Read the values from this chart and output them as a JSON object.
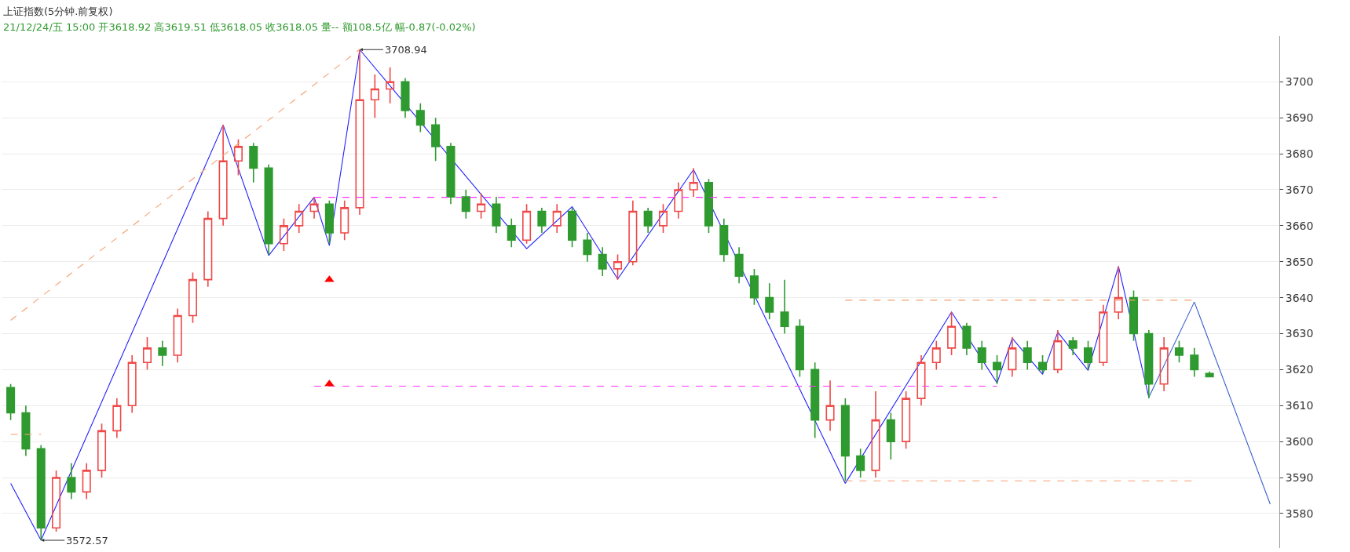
{
  "chart_data": {
    "type": "candlestick",
    "title": "上证指数(5分钟.前复权)",
    "subtitle": "21/12/24/五 15:00 开3618.92 高3619.51 低3618.05 收3618.05 量-- 额108.5亿 幅-0.87(-0.02%)",
    "categories": [
      null,
      null,
      null,
      null,
      null,
      null,
      null,
      null,
      null,
      null,
      null,
      null,
      null,
      null,
      null,
      null,
      null,
      null,
      null,
      null,
      null,
      null,
      null,
      null,
      null,
      null,
      null,
      null,
      null,
      null,
      null,
      null,
      null,
      null,
      null,
      null,
      null,
      null,
      null,
      null,
      null,
      null,
      null,
      null,
      null,
      null,
      null,
      null,
      null,
      null,
      null,
      null,
      null,
      null,
      null,
      null,
      null,
      null,
      null,
      null,
      null,
      null,
      null,
      null,
      null,
      null,
      null,
      null,
      null,
      null,
      null,
      null,
      null,
      null,
      null,
      null,
      null,
      null,
      null,
      null,
      null,
      null,
      null,
      null
    ],
    "series": [
      {
        "colors": [
          "#2f9a2f",
          "#2f9a2f",
          "#2f9a2f",
          "#f04848",
          "#2f9a2f",
          "#f04848",
          "#f04848",
          "#f04848",
          "#f04848",
          "#f04848",
          "#2f9a2f",
          "#f04848",
          "#f04848",
          "#f04848",
          "#f04848",
          "#f04848",
          "#2f9a2f",
          "#2f9a2f",
          "#f04848",
          "#f04848",
          "#f04848",
          "#2f9a2f",
          "#f04848",
          "#f04848",
          "#f04848",
          "#f04848",
          "#2f9a2f",
          "#2f9a2f",
          "#2f9a2f",
          "#2f9a2f",
          "#2f9a2f",
          "#f04848",
          "#2f9a2f",
          "#2f9a2f",
          "#f04848",
          "#2f9a2f",
          "#f04848",
          "#2f9a2f",
          "#2f9a2f",
          "#2f9a2f",
          "#f04848",
          "#f04848",
          "#2f9a2f",
          "#f04848",
          "#f04848",
          "#f04848",
          "#2f9a2f",
          "#2f9a2f",
          "#2f9a2f",
          "#2f9a2f",
          "#2f9a2f",
          "#2f9a2f",
          "#2f9a2f",
          "#2f9a2f",
          "#f04848",
          "#2f9a2f",
          "#2f9a2f",
          "#f04848",
          "#2f9a2f",
          "#f04848",
          "#f04848",
          "#f04848",
          "#f04848",
          "#2f9a2f",
          "#2f9a2f",
          "#2f9a2f",
          "#f04848",
          "#2f9a2f",
          "#2f9a2f",
          "#f04848",
          "#2f9a2f",
          "#2f9a2f",
          "#f04848",
          "#f04848",
          "#2f9a2f",
          "#2f9a2f",
          "#f04848",
          "#2f9a2f",
          "#2f9a2f",
          "#2f9a2f",
          null,
          null,
          null,
          null
        ],
        "ohlc": [
          [
            3615,
            3616,
            3606,
            3608
          ],
          [
            3608,
            3610,
            3596,
            3598
          ],
          [
            3598,
            3599,
            3572.57,
            3576
          ],
          [
            3576,
            3592,
            3575,
            3590
          ],
          [
            3590,
            3594,
            3584,
            3586
          ],
          [
            3586,
            3594,
            3584,
            3592
          ],
          [
            3592,
            3605,
            3590,
            3603
          ],
          [
            3603,
            3612,
            3601,
            3610
          ],
          [
            3610,
            3624,
            3608,
            3622
          ],
          [
            3622,
            3629,
            3620,
            3626
          ],
          [
            3626,
            3628,
            3621,
            3624
          ],
          [
            3624,
            3637,
            3622,
            3635
          ],
          [
            3635,
            3647,
            3633,
            3645
          ],
          [
            3645,
            3664,
            3643,
            3662
          ],
          [
            3662,
            3688,
            3660,
            3678
          ],
          [
            3678,
            3684,
            3674,
            3682
          ],
          [
            3682,
            3683,
            3672,
            3676
          ],
          [
            3676,
            3677,
            3652,
            3655
          ],
          [
            3655,
            3662,
            3653,
            3660
          ],
          [
            3660,
            3666,
            3658,
            3664
          ],
          [
            3664,
            3668,
            3662,
            3666
          ],
          [
            3666,
            3667,
            3655,
            3658
          ],
          [
            3658,
            3667,
            3656,
            3665
          ],
          [
            3665,
            3708.94,
            3663,
            3695
          ],
          [
            3695,
            3702,
            3690,
            3698
          ],
          [
            3698,
            3704,
            3694,
            3700
          ],
          [
            3700,
            3701,
            3690,
            3692
          ],
          [
            3692,
            3694,
            3686,
            3688
          ],
          [
            3688,
            3690,
            3678,
            3682
          ],
          [
            3682,
            3683,
            3666,
            3668
          ],
          [
            3668,
            3670,
            3662,
            3664
          ],
          [
            3664,
            3669,
            3662,
            3666
          ],
          [
            3666,
            3668,
            3658,
            3660
          ],
          [
            3660,
            3662,
            3654,
            3656
          ],
          [
            3656,
            3666,
            3655,
            3664
          ],
          [
            3664,
            3665,
            3658,
            3660
          ],
          [
            3660,
            3666,
            3658,
            3664
          ],
          [
            3664,
            3665,
            3654,
            3656
          ],
          [
            3656,
            3658,
            3650,
            3652
          ],
          [
            3652,
            3654,
            3646,
            3648
          ],
          [
            3648,
            3652,
            3645,
            3650
          ],
          [
            3650,
            3667,
            3649,
            3664
          ],
          [
            3664,
            3665,
            3658,
            3660
          ],
          [
            3660,
            3666,
            3658,
            3664
          ],
          [
            3664,
            3672,
            3662,
            3670
          ],
          [
            3670,
            3676,
            3668,
            3672
          ],
          [
            3672,
            3673,
            3658,
            3660
          ],
          [
            3660,
            3662,
            3650,
            3652
          ],
          [
            3652,
            3654,
            3644,
            3646
          ],
          [
            3646,
            3648,
            3638,
            3640
          ],
          [
            3640,
            3644,
            3634,
            3636
          ],
          [
            3636,
            3645,
            3630,
            3632
          ],
          [
            3632,
            3634,
            3618,
            3620
          ],
          [
            3620,
            3622,
            3601,
            3606
          ],
          [
            3606,
            3617,
            3603,
            3610
          ],
          [
            3610,
            3612,
            3589,
            3596
          ],
          [
            3596,
            3598,
            3590,
            3592
          ],
          [
            3592,
            3614,
            3590,
            3606
          ],
          [
            3606,
            3608,
            3595,
            3600
          ],
          [
            3600,
            3614,
            3598,
            3612
          ],
          [
            3612,
            3624,
            3610,
            3622
          ],
          [
            3622,
            3628,
            3620,
            3626
          ],
          [
            3626,
            3636,
            3624,
            3632
          ],
          [
            3632,
            3633,
            3624,
            3626
          ],
          [
            3626,
            3628,
            3620,
            3622
          ],
          [
            3622,
            3624,
            3616,
            3620
          ],
          [
            3620,
            3629,
            3618,
            3626
          ],
          [
            3626,
            3628,
            3620,
            3622
          ],
          [
            3622,
            3624,
            3619,
            3620
          ],
          [
            3620,
            3631,
            3619,
            3628
          ],
          [
            3628,
            3629,
            3624,
            3626
          ],
          [
            3626,
            3628,
            3620,
            3622
          ],
          [
            3622,
            3638,
            3621,
            3636
          ],
          [
            3636,
            3648.7,
            3634,
            3640
          ],
          [
            3640,
            3642,
            3628,
            3630
          ],
          [
            3630,
            3631,
            3612,
            3616
          ],
          [
            3616,
            3629,
            3614,
            3626
          ],
          [
            3626,
            3628,
            3622,
            3624
          ],
          [
            3624,
            3626,
            3618,
            3620
          ],
          [
            3618.92,
            3619.51,
            3618.05,
            3618.05
          ],
          null,
          null,
          null,
          null
        ]
      },
      {
        "type": "line",
        "color": "#f5a070",
        "line_style": "dashed",
        "values": [
          3633.7,
          null,
          null,
          null,
          null,
          null,
          null,
          null,
          null,
          null,
          null,
          null,
          null,
          null,
          null,
          null,
          null,
          null,
          null,
          null,
          null,
          null,
          null,
          3709,
          null,
          null,
          null,
          null,
          null,
          null,
          null,
          null,
          null,
          null,
          null,
          null,
          null,
          null,
          null,
          null,
          null,
          null,
          null,
          null,
          null,
          null,
          null,
          null,
          null,
          null,
          null,
          null,
          null,
          null,
          null,
          null,
          null,
          null,
          null,
          null,
          null,
          null,
          null,
          null,
          null,
          null,
          null,
          null,
          null,
          null,
          null,
          null,
          null,
          null,
          null,
          null,
          null,
          null,
          null,
          null,
          null,
          null,
          null,
          null
        ]
      },
      {
        "type": "line",
        "color": "#f5a070",
        "line_style": "dashed",
        "values": [
          3602,
          3602,
          3602,
          null,
          null,
          null,
          null,
          null,
          null,
          null,
          null,
          null,
          null,
          null,
          null,
          null,
          null,
          null,
          null,
          null,
          null,
          null,
          null,
          null,
          null,
          null,
          null,
          null,
          null,
          null,
          null,
          null,
          null,
          null,
          null,
          null,
          null,
          null,
          null,
          null,
          null,
          null,
          null,
          null,
          null,
          null,
          null,
          null,
          null,
          null,
          null,
          null,
          null,
          null,
          null,
          null,
          null,
          null,
          null,
          null,
          null,
          null,
          null,
          null,
          null,
          null,
          null,
          null,
          null,
          null,
          null,
          null,
          null,
          null,
          null,
          null,
          null,
          null,
          null,
          null,
          null,
          null,
          null,
          null
        ]
      },
      {
        "type": "line",
        "color": "#ff33ff",
        "line_style": "dashed",
        "values": [
          null,
          null,
          null,
          null,
          null,
          null,
          null,
          null,
          null,
          null,
          null,
          null,
          null,
          null,
          null,
          null,
          null,
          null,
          null,
          null,
          3667.9,
          3667.9,
          3667.9,
          3667.9,
          3667.9,
          3667.9,
          3667.9,
          3667.9,
          3667.9,
          3667.9,
          3667.9,
          3667.9,
          3667.9,
          3667.9,
          3667.9,
          3667.9,
          3667.9,
          3667.9,
          3667.9,
          3667.9,
          3667.9,
          3667.9,
          3667.9,
          3667.9,
          3667.9,
          3667.9,
          3667.9,
          3667.9,
          3667.9,
          3667.9,
          3667.9,
          3667.9,
          3667.9,
          3667.9,
          3667.9,
          3667.9,
          3667.9,
          3667.9,
          3667.9,
          3667.9,
          3667.9,
          3667.9,
          3667.9,
          3667.9,
          3667.9,
          3667.9,
          null,
          null,
          null,
          null,
          null,
          null,
          null,
          null,
          null,
          null,
          null,
          null,
          null,
          null,
          null,
          null,
          null,
          null
        ]
      },
      {
        "type": "line",
        "color": "#ff33ff",
        "line_style": "dashed",
        "values": [
          null,
          null,
          null,
          null,
          null,
          null,
          null,
          null,
          null,
          null,
          null,
          null,
          null,
          null,
          null,
          null,
          null,
          null,
          null,
          null,
          3615.4,
          3615.4,
          3615.4,
          3615.4,
          3615.4,
          3615.4,
          3615.4,
          3615.4,
          3615.4,
          3615.4,
          3615.4,
          3615.4,
          3615.4,
          3615.4,
          3615.4,
          3615.4,
          3615.4,
          3615.4,
          3615.4,
          3615.4,
          3615.4,
          3615.4,
          3615.4,
          3615.4,
          3615.4,
          3615.4,
          3615.4,
          3615.4,
          3615.4,
          3615.4,
          3615.4,
          3615.4,
          3615.4,
          3615.4,
          3615.4,
          3615.4,
          3615.4,
          3615.4,
          3615.4,
          3615.4,
          3615.4,
          3615.4,
          3615.4,
          3615.4,
          3615.4,
          3615.4,
          null,
          null,
          null,
          null,
          null,
          null,
          null,
          null,
          null,
          null,
          null,
          null,
          null,
          null,
          null,
          null,
          null,
          null
        ]
      },
      {
        "type": "line",
        "color": "#f5a070",
        "line_style": "dashed",
        "values": [
          null,
          null,
          null,
          null,
          null,
          null,
          null,
          null,
          null,
          null,
          null,
          null,
          null,
          null,
          null,
          null,
          null,
          null,
          null,
          null,
          null,
          null,
          null,
          null,
          null,
          null,
          null,
          null,
          null,
          null,
          null,
          null,
          null,
          null,
          null,
          null,
          null,
          null,
          null,
          null,
          null,
          null,
          null,
          null,
          null,
          null,
          null,
          null,
          null,
          null,
          null,
          null,
          null,
          null,
          null,
          3639.3,
          3639.3,
          3639.3,
          3639.3,
          3639.3,
          3639.3,
          3639.3,
          3639.3,
          3639.3,
          3639.3,
          3639.3,
          3639.3,
          3639.3,
          3639.3,
          3639.3,
          3639.3,
          3639.3,
          3639.3,
          3639.3,
          3639.3,
          3639.3,
          3639.3,
          3639.3,
          3639.3,
          null,
          null,
          null,
          null,
          null
        ]
      },
      {
        "type": "line",
        "color": "#f5a070",
        "line_style": "dashed",
        "values": [
          null,
          null,
          null,
          null,
          null,
          null,
          null,
          null,
          null,
          null,
          null,
          null,
          null,
          null,
          null,
          null,
          null,
          null,
          null,
          null,
          null,
          null,
          null,
          null,
          null,
          null,
          null,
          null,
          null,
          null,
          null,
          null,
          null,
          null,
          null,
          null,
          null,
          null,
          null,
          null,
          null,
          null,
          null,
          null,
          null,
          null,
          null,
          null,
          null,
          null,
          null,
          null,
          null,
          null,
          null,
          3589.1,
          3589.1,
          3589.1,
          3589.1,
          3589.1,
          3589.1,
          3589.1,
          3589.1,
          3589.1,
          3589.1,
          3589.1,
          3589.1,
          3589.1,
          3589.1,
          3589.1,
          3589.1,
          3589.1,
          3589.1,
          3589.1,
          3589.1,
          3589.1,
          3589.1,
          3589.1,
          3589.1,
          null,
          null,
          null,
          null,
          null
        ]
      },
      {
        "type": "line",
        "color": "#2020ff",
        "line_style": "solid",
        "values": [
          3588.4,
          null,
          3572.57,
          null,
          null,
          null,
          null,
          null,
          null,
          null,
          null,
          null,
          null,
          null,
          3688,
          null,
          null,
          3651.7,
          null,
          null,
          3667.9,
          3654.5,
          null,
          3708.94,
          null,
          null,
          null,
          null,
          null,
          null,
          null,
          null,
          null,
          null,
          3653.6,
          null,
          null,
          3665.3,
          null,
          null,
          3645.2,
          null,
          null,
          null,
          null,
          3675.6,
          null,
          null,
          null,
          null,
          null,
          null,
          null,
          null,
          null,
          3588.4,
          null,
          null,
          null,
          null,
          null,
          null,
          3636,
          null,
          null,
          3616.3,
          3628.7,
          null,
          3618.7,
          3630.4,
          null,
          3619.8,
          null,
          3648.7,
          null,
          3612.3,
          null,
          null,
          null,
          null,
          null,
          null,
          null,
          null
        ]
      },
      {
        "type": "line",
        "color": "#3a5fcd",
        "line_style": "solid",
        "values": [
          null,
          null,
          null,
          null,
          null,
          null,
          null,
          null,
          null,
          null,
          null,
          null,
          null,
          null,
          null,
          null,
          null,
          null,
          null,
          null,
          null,
          null,
          null,
          null,
          null,
          null,
          null,
          null,
          null,
          null,
          null,
          null,
          null,
          null,
          null,
          null,
          null,
          null,
          null,
          null,
          null,
          null,
          null,
          null,
          null,
          null,
          null,
          null,
          null,
          null,
          null,
          null,
          null,
          null,
          null,
          null,
          null,
          null,
          null,
          null,
          null,
          null,
          null,
          null,
          null,
          null,
          null,
          null,
          null,
          null,
          null,
          null,
          null,
          null,
          null,
          3612.3,
          null,
          null,
          3638.8,
          null,
          null,
          null,
          null,
          3582.6
        ]
      },
      {
        "type": "scatter",
        "color": "#ff0000",
        "marker": "triangle",
        "values": [
          null,
          null,
          null,
          null,
          null,
          null,
          null,
          null,
          null,
          null,
          null,
          null,
          null,
          null,
          null,
          null,
          null,
          null,
          null,
          null,
          null,
          3645,
          null,
          null,
          null,
          null,
          null,
          null,
          null,
          null,
          null,
          null,
          null,
          null,
          null,
          null,
          null,
          null,
          null,
          null,
          null,
          null,
          null,
          null,
          null,
          null,
          null,
          null,
          null,
          null,
          null,
          null,
          null,
          null,
          null,
          null,
          null,
          null,
          null,
          null,
          null,
          null,
          null,
          null,
          null,
          null,
          null,
          null,
          null,
          null,
          null,
          null,
          null,
          null,
          null,
          null,
          null,
          null,
          null,
          null,
          null,
          null,
          null,
          null
        ]
      },
      {
        "type": "scatter",
        "color": "#ff0000",
        "marker": "triangle",
        "values": [
          null,
          null,
          null,
          null,
          null,
          null,
          null,
          null,
          null,
          null,
          null,
          null,
          null,
          null,
          null,
          null,
          null,
          null,
          null,
          null,
          null,
          3616,
          null,
          null,
          null,
          null,
          null,
          null,
          null,
          null,
          null,
          null,
          null,
          null,
          null,
          null,
          null,
          null,
          null,
          null,
          null,
          null,
          null,
          null,
          null,
          null,
          null,
          null,
          null,
          null,
          null,
          null,
          null,
          null,
          null,
          null,
          null,
          null,
          null,
          null,
          null,
          null,
          null,
          null,
          null,
          null,
          null,
          null,
          null,
          null,
          null,
          null,
          null,
          null,
          null,
          null,
          null,
          null,
          null,
          null,
          null,
          null,
          null,
          null
        ]
      }
    ],
    "annotations": [
      "3708.94",
      "3572.57"
    ],
    "ylim": [
      3570.4,
      3712.7
    ],
    "yticks": [
      3580,
      3590,
      3600,
      3610,
      3620,
      3630,
      3640,
      3650,
      3660,
      3670,
      3680,
      3690,
      3700
    ],
    "tick_labels": "y",
    "grid": "y"
  }
}
